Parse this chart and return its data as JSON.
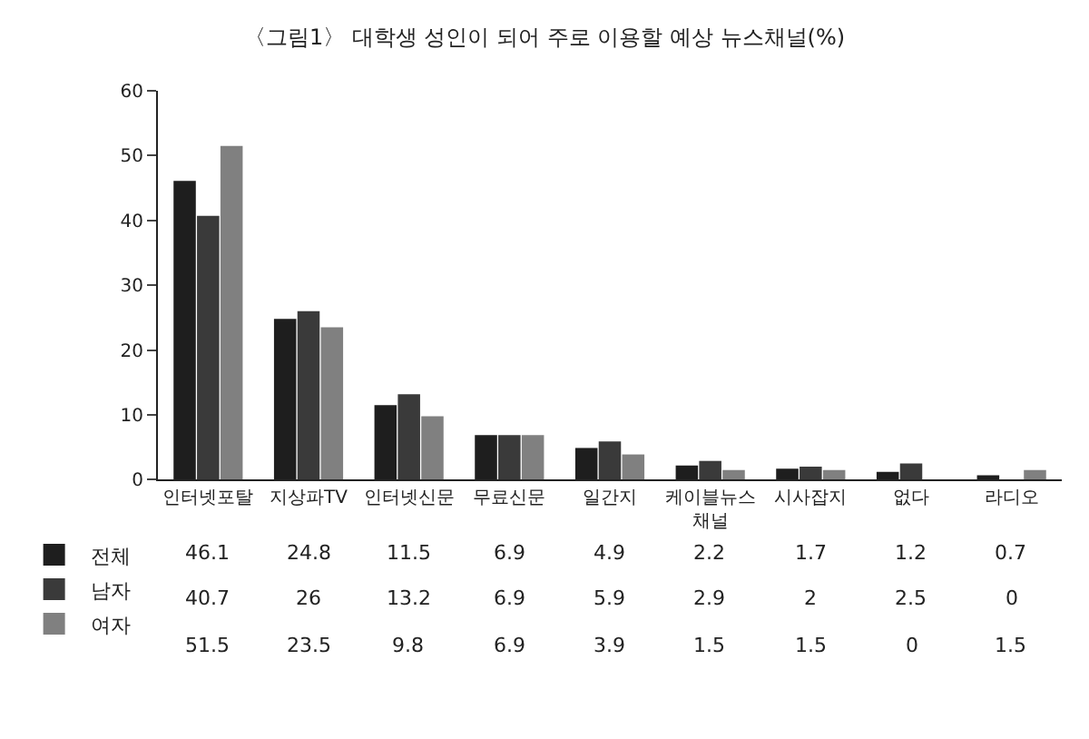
{
  "chart_data": {
    "type": "bar",
    "title": "〈그림1〉 대학생 성인이 되어 주로 이용할 예상 뉴스채널(%)",
    "categories": [
      "인터넷포탈",
      "지상파TV",
      "인터넷신문",
      "무료신문",
      "일간지",
      "케이블뉴스채널",
      "시사잡지",
      "없다",
      "라디오"
    ],
    "series": [
      {
        "name": "전체",
        "color": "#1e1e1e",
        "values": [
          46.1,
          24.8,
          11.5,
          6.9,
          4.9,
          2.2,
          1.7,
          1.2,
          0.7
        ]
      },
      {
        "name": "남자",
        "color": "#3a3a3a",
        "values": [
          40.7,
          26,
          13.2,
          6.9,
          5.9,
          2.9,
          2,
          2.5,
          0
        ]
      },
      {
        "name": "여자",
        "color": "#808080",
        "values": [
          51.5,
          23.5,
          9.8,
          6.9,
          3.9,
          1.5,
          1.5,
          0,
          1.5
        ]
      }
    ],
    "ylim": [
      0,
      60
    ],
    "yticks": [
      0,
      10,
      20,
      30,
      40,
      50,
      60
    ],
    "legend": "bottom left",
    "data_labels": true
  }
}
